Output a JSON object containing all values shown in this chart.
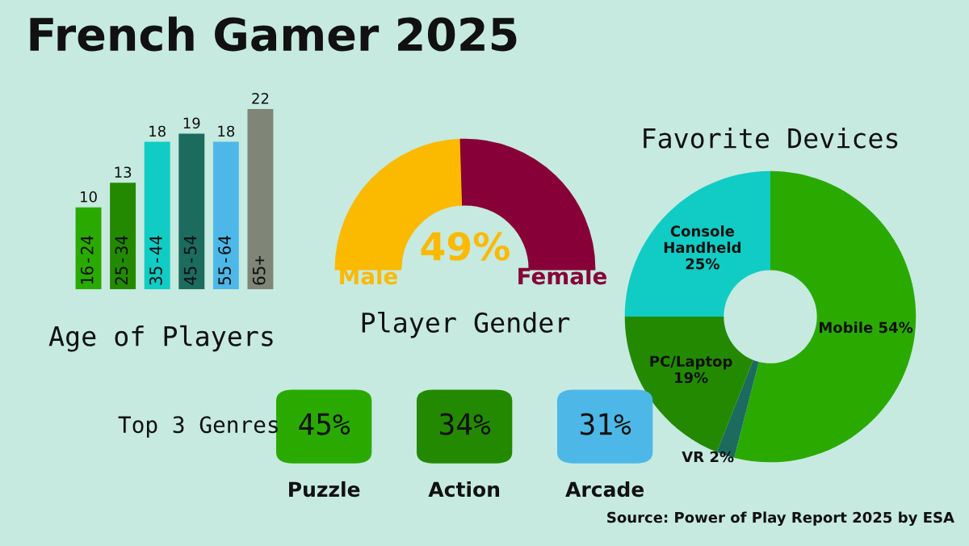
{
  "chart_data": [
    {
      "type": "bar",
      "title": "French Gamer 2025",
      "xlabel": "Age of Players",
      "categories": [
        "16-24",
        "25-34",
        "35-44",
        "45-54",
        "55-64",
        "65+"
      ],
      "values": [
        10,
        13,
        18,
        19,
        18,
        22
      ],
      "colors": [
        "#2aaa00",
        "#238a00",
        "#10ccc4",
        "#1b6b5e",
        "#4db8e8",
        "#7f8577"
      ],
      "data_labels": true
    },
    {
      "type": "donut",
      "xlabel": "Player Gender",
      "categories": [
        "Male",
        "Female"
      ],
      "values": [
        49,
        51
      ],
      "colors": [
        "#fbb900",
        "#870037"
      ],
      "value_labels": [
        "49%",
        null
      ]
    },
    {
      "type": "donut",
      "title": "Favorite Devices",
      "categories": [
        "Mobile",
        "VR",
        "PC/Laptop",
        "Console Handheld"
      ],
      "values": [
        54,
        2,
        19,
        25
      ],
      "colors": [
        "#2aaa00",
        "#1b6b5e",
        "#238a00",
        "#10ccc4"
      ],
      "value_labels": [
        "54%",
        "2%",
        "19%",
        "25%"
      ]
    },
    {
      "type": "other",
      "title": "Top 3 Genres",
      "categories": [
        "Puzzle",
        "Action",
        "Arcade"
      ],
      "values": [
        45,
        34,
        31
      ],
      "colors": [
        "#2aaa00",
        "#238a00",
        "#4db8e8"
      ],
      "value_labels": [
        "45%",
        "34%",
        "31%"
      ],
      "annotations": [
        "Source: Power of Play Report 2025 by ESA"
      ]
    }
  ]
}
